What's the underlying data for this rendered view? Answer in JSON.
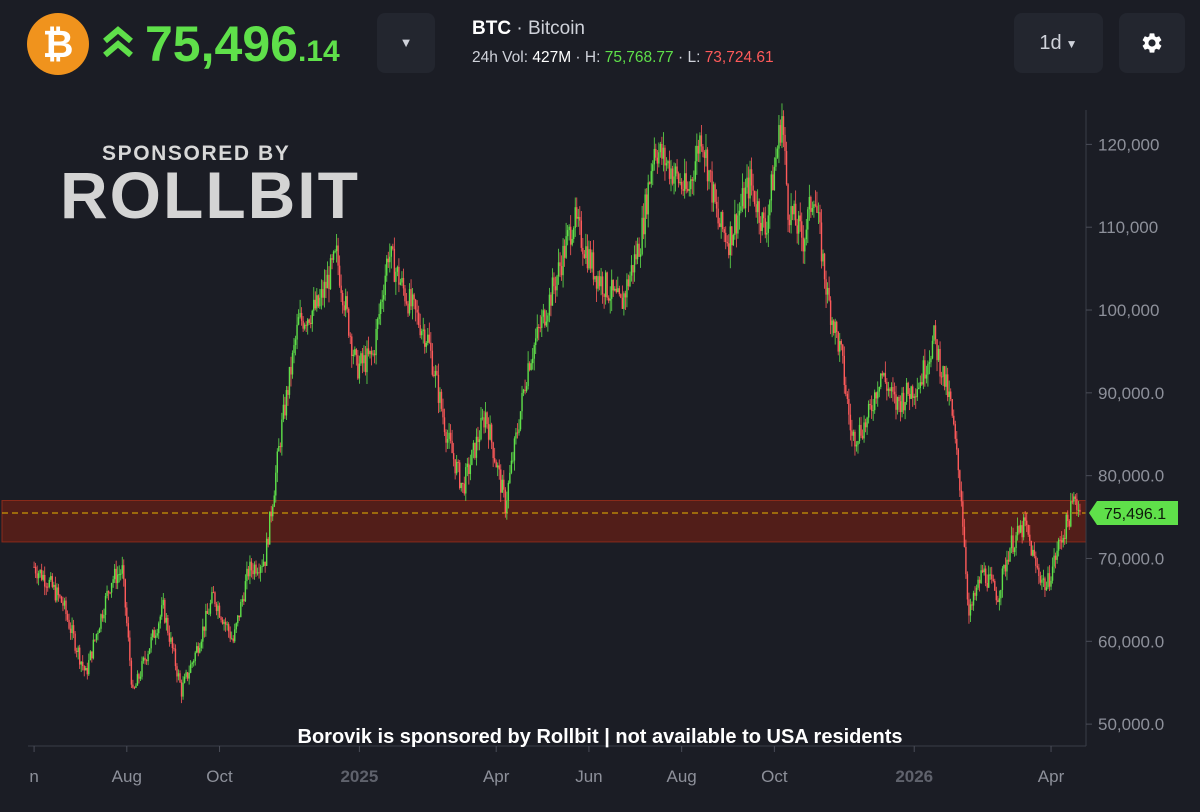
{
  "header": {
    "coin_icon": "bitcoin-icon",
    "trend_icon": "double-chevron-up-icon",
    "price_int": "75,496",
    "price_dec": ".14",
    "dropdown_icon": "chevron-down-icon",
    "symbol": "BTC",
    "name_sep": " · ",
    "name": "Bitcoin",
    "vol_label": "24h Vol: ",
    "vol_value": "427M",
    "high_label": " · H: ",
    "high_value": "75,768.77",
    "low_label": " · L: ",
    "low_value": "73,724.61",
    "timeframe": "1d",
    "settings_icon": "gear-icon"
  },
  "sponsor": {
    "small": "SPONSORED BY",
    "big": "ROLLBIT",
    "footer": "Borovik is sponsored by Rollbit | not available to USA residents"
  },
  "colors": {
    "up": "#5fe04a",
    "down": "#ff5a5a",
    "zone": "#5c1f17",
    "price_line": "#e6b400",
    "brand": "#f0931d"
  },
  "chart_data": {
    "type": "candlestick",
    "x_ticks": [
      {
        "label": "n",
        "date": "2024-06-01"
      },
      {
        "label": "Aug",
        "date": "2024-08-01"
      },
      {
        "label": "Oct",
        "date": "2024-10-01"
      },
      {
        "label": "2025",
        "date": "2025-01-01"
      },
      {
        "label": "Apr",
        "date": "2025-04-01"
      },
      {
        "label": "Jun",
        "date": "2025-06-01"
      },
      {
        "label": "Aug",
        "date": "2025-08-01"
      },
      {
        "label": "Oct",
        "date": "2025-10-01"
      },
      {
        "label": "2026",
        "date": "2026-01-01"
      },
      {
        "label": "Apr",
        "date": "2026-04-01"
      }
    ],
    "y_ticks": [
      "50,000.0",
      "60,000.0",
      "70,000.0",
      "80,000.0",
      "90,000.0",
      "100,000",
      "110,000",
      "120,000"
    ],
    "y_tick_values": [
      50000,
      60000,
      70000,
      80000,
      90000,
      100000,
      110000,
      120000
    ],
    "ylim": [
      47600,
      125600
    ],
    "xlim": [
      "2024-05-28",
      "2026-04-24"
    ],
    "last_price": 75496.1,
    "last_price_label": "75,496.1",
    "zone": [
      72000,
      77000
    ],
    "closes": [
      [
        "2024-06-01",
        69000
      ],
      [
        "2024-06-10",
        67300
      ],
      [
        "2024-06-20",
        64500
      ],
      [
        "2024-06-25",
        61500
      ],
      [
        "2024-07-05",
        56000
      ],
      [
        "2024-07-15",
        63000
      ],
      [
        "2024-07-22",
        67500
      ],
      [
        "2024-07-29",
        68500
      ],
      [
        "2024-08-05",
        53500
      ],
      [
        "2024-08-15",
        59000
      ],
      [
        "2024-08-25",
        64000
      ],
      [
        "2024-09-06",
        54000
      ],
      [
        "2024-09-15",
        58500
      ],
      [
        "2024-09-27",
        65500
      ],
      [
        "2024-10-10",
        60000
      ],
      [
        "2024-10-20",
        68500
      ],
      [
        "2024-10-31",
        70000
      ],
      [
        "2024-11-11",
        86000
      ],
      [
        "2024-11-22",
        98500
      ],
      [
        "2024-12-05",
        100500
      ],
      [
        "2024-12-17",
        106500
      ],
      [
        "2024-12-30",
        93000
      ],
      [
        "2025-01-10",
        94500
      ],
      [
        "2025-01-20",
        107000
      ],
      [
        "2025-01-31",
        102000
      ],
      [
        "2025-02-15",
        96500
      ],
      [
        "2025-02-28",
        84500
      ],
      [
        "2025-03-10",
        78500
      ],
      [
        "2025-03-25",
        87500
      ],
      [
        "2025-04-07",
        76500
      ],
      [
        "2025-04-22",
        93500
      ],
      [
        "2025-05-10",
        103500
      ],
      [
        "2025-05-22",
        111000
      ],
      [
        "2025-06-05",
        104500
      ],
      [
        "2025-06-22",
        100500
      ],
      [
        "2025-07-05",
        108500
      ],
      [
        "2025-07-14",
        119800
      ],
      [
        "2025-07-25",
        117000
      ],
      [
        "2025-08-05",
        114000
      ],
      [
        "2025-08-14",
        121500
      ],
      [
        "2025-08-25",
        110500
      ],
      [
        "2025-09-01",
        108500
      ],
      [
        "2025-09-15",
        115500
      ],
      [
        "2025-09-25",
        109500
      ],
      [
        "2025-10-06",
        123500
      ],
      [
        "2025-10-10",
        112500
      ],
      [
        "2025-10-20",
        108500
      ],
      [
        "2025-10-27",
        114500
      ],
      [
        "2025-11-05",
        101500
      ],
      [
        "2025-11-14",
        94500
      ],
      [
        "2025-11-21",
        84500
      ],
      [
        "2025-12-01",
        86500
      ],
      [
        "2025-12-10",
        92500
      ],
      [
        "2025-12-20",
        88500
      ],
      [
        "2026-01-05",
        91500
      ],
      [
        "2026-01-14",
        96500
      ],
      [
        "2026-01-25",
        88500
      ],
      [
        "2026-02-01",
        77500
      ],
      [
        "2026-02-06",
        63000
      ],
      [
        "2026-02-15",
        68500
      ],
      [
        "2026-02-25",
        65500
      ],
      [
        "2026-03-05",
        71500
      ],
      [
        "2026-03-15",
        74000
      ],
      [
        "2026-03-22",
        69000
      ],
      [
        "2026-03-29",
        66500
      ],
      [
        "2026-04-06",
        71500
      ],
      [
        "2026-04-12",
        74500
      ],
      [
        "2026-04-17",
        77500
      ],
      [
        "2026-04-20",
        75496
      ]
    ]
  }
}
